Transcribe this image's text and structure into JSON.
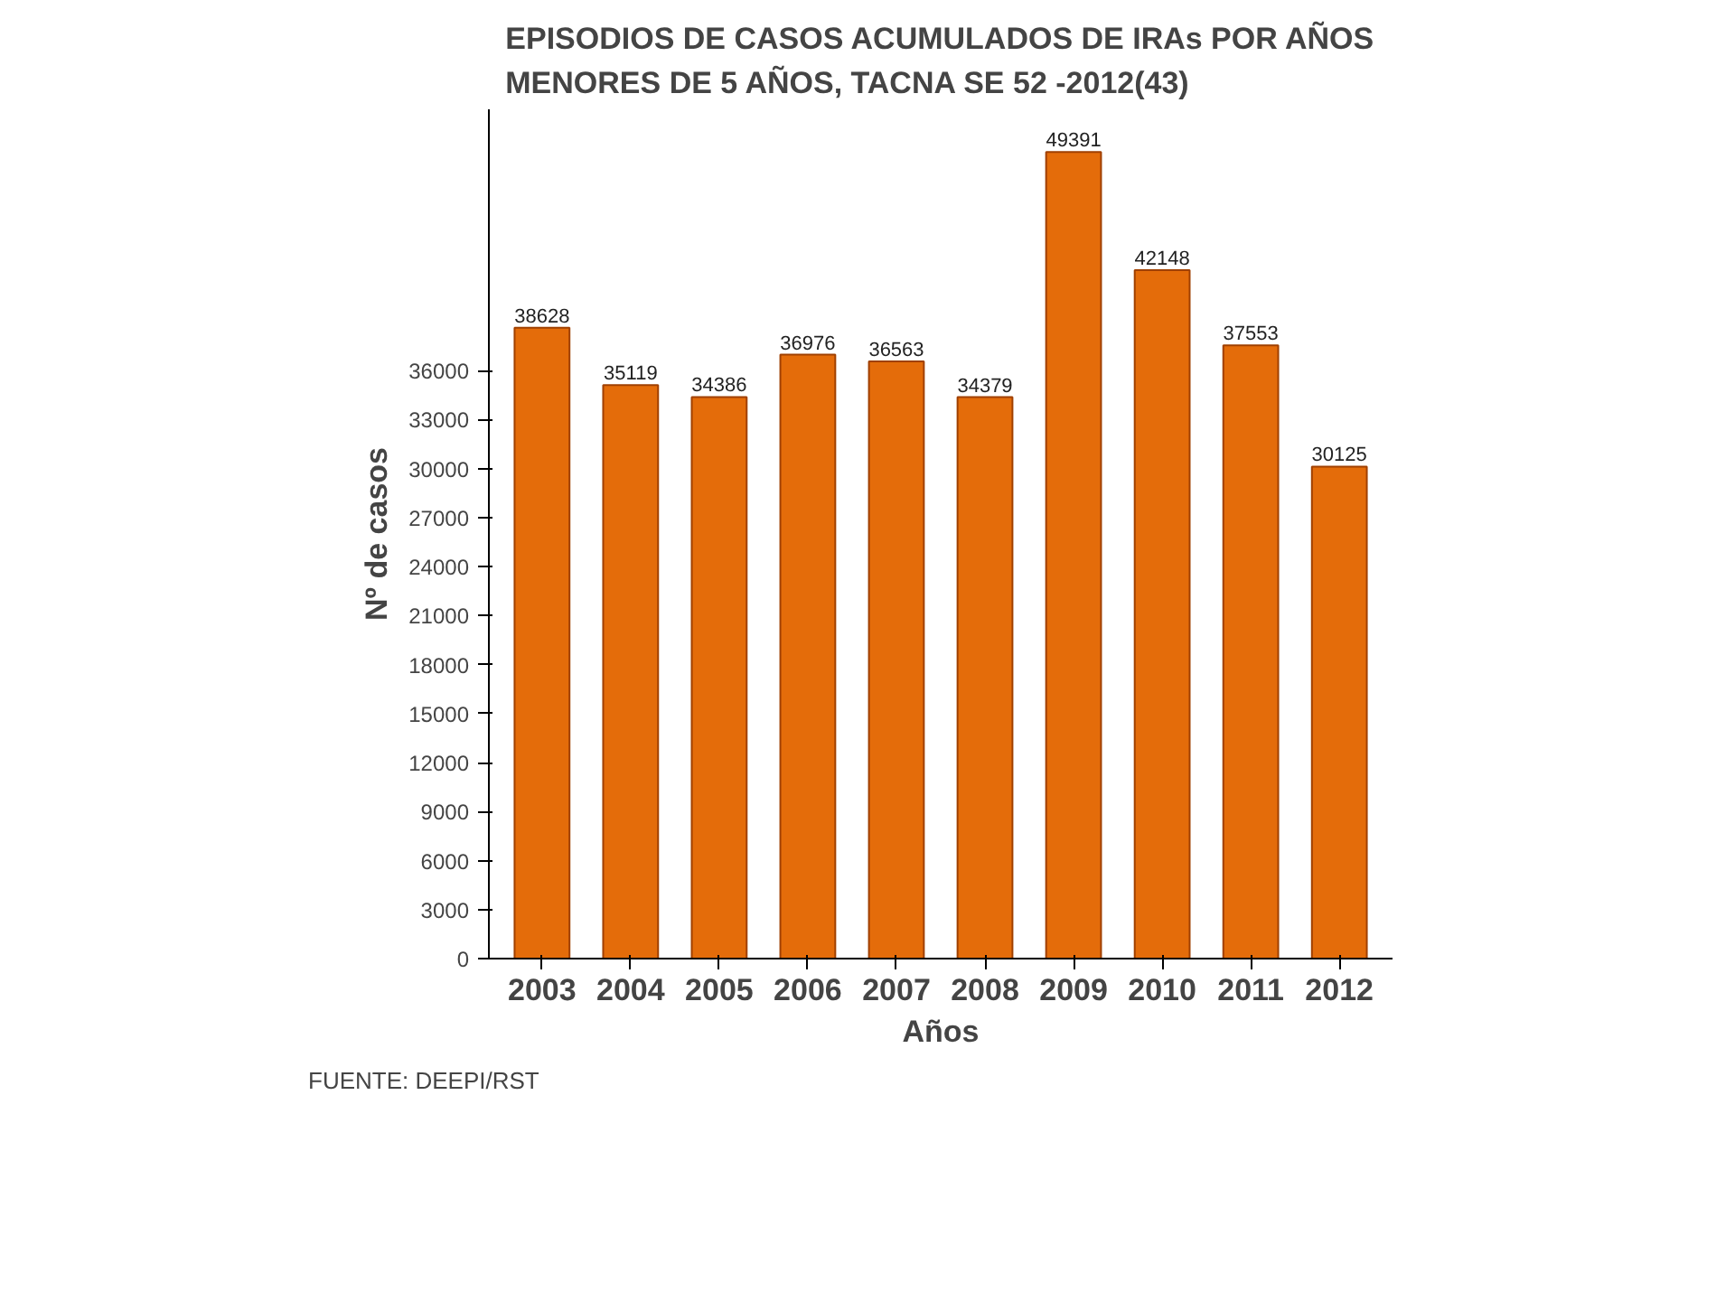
{
  "chart_data": {
    "type": "bar",
    "title": "EPISODIOS DE CASOS ACUMULADOS DE IRAs POR AÑOS\nMENORES DE 5 AÑOS, TACNA SE 52 -2012(43)",
    "xlabel": "Años",
    "ylabel": "Nº de casos",
    "categories": [
      "2003",
      "2004",
      "2005",
      "2006",
      "2007",
      "2008",
      "2009",
      "2010",
      "2011",
      "2012"
    ],
    "values": [
      38628,
      35119,
      34386,
      36976,
      36563,
      34379,
      49391,
      42148,
      37553,
      30125
    ],
    "color": "#e46c0a",
    "data_labels": true,
    "grid": false,
    "ylim": [
      0,
      52000
    ],
    "yticks": [
      0,
      3000,
      6000,
      9000,
      12000,
      15000,
      18000,
      21000,
      24000,
      27000,
      30000,
      33000,
      36000
    ],
    "annotations": [
      "FUENTE: DEEPI/RST"
    ]
  }
}
